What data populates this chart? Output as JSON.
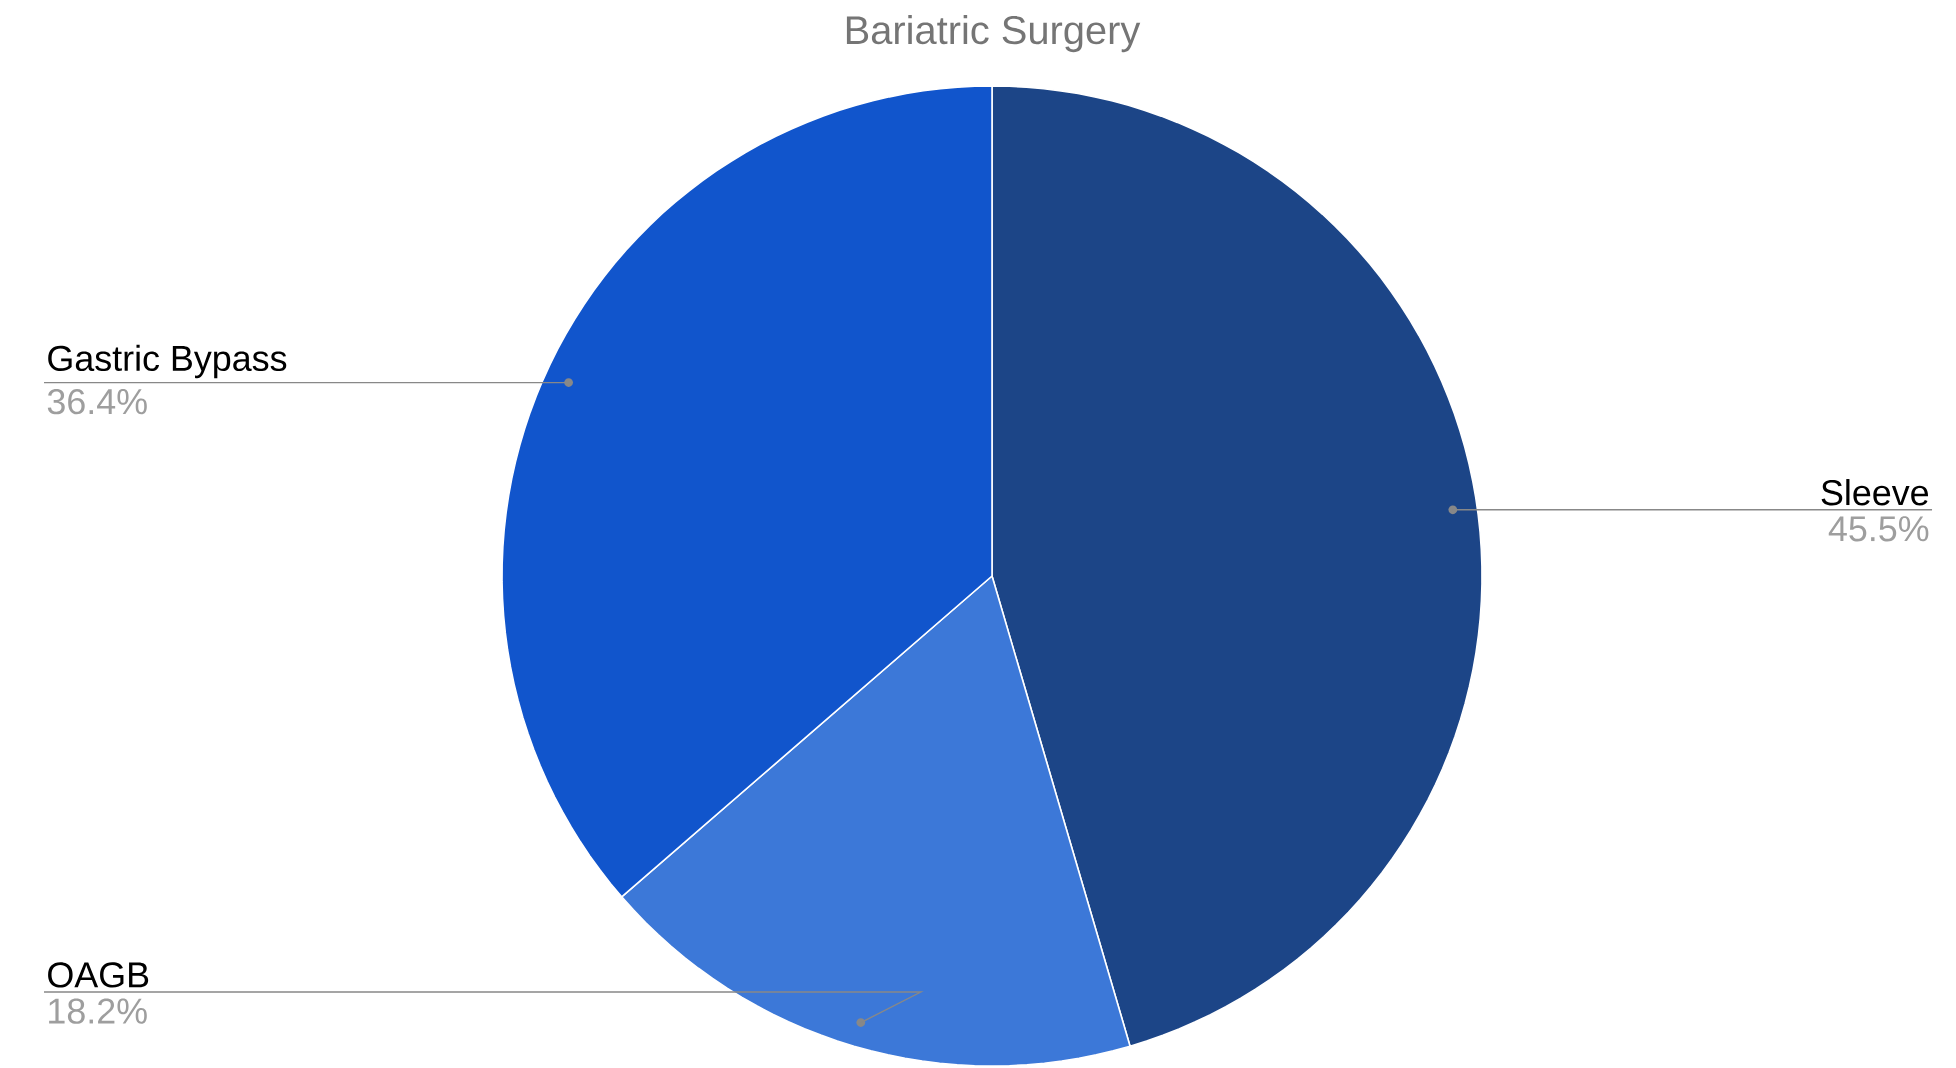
{
  "chart_data": {
    "type": "pie",
    "title": "Bariatric Surgery",
    "categories": [
      "Sleeve",
      "OAGB",
      "Gastric Bypass"
    ],
    "values": [
      45.5,
      18.2,
      36.4
    ],
    "colors": [
      "#1c4587",
      "#3c78d8",
      "#1155cc"
    ],
    "value_labels": [
      "45.5%",
      "18.2%",
      "36.4%"
    ]
  }
}
